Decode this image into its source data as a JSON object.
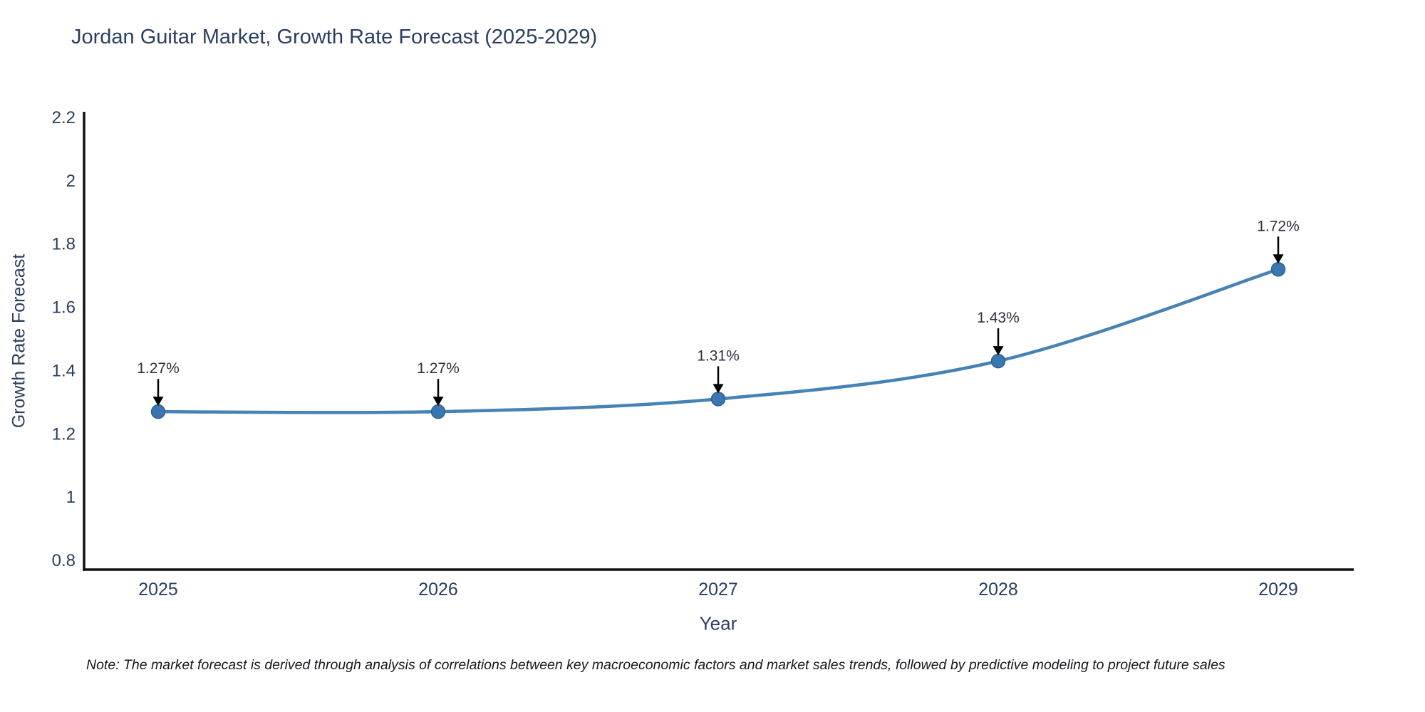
{
  "page": {
    "background": "#ffffff"
  },
  "chart_data": {
    "type": "line",
    "title": "Jordan Guitar Market, Growth Rate Forecast (2025-2029)",
    "xlabel": "Year",
    "ylabel": "Growth Rate Forecast",
    "categories": [
      "2025",
      "2026",
      "2027",
      "2028",
      "2029"
    ],
    "series": [
      {
        "name": "Growth Rate Forecast",
        "values": [
          1.27,
          1.27,
          1.31,
          1.43,
          1.72
        ]
      }
    ],
    "point_labels": [
      "1.27%",
      "1.27%",
      "1.31%",
      "1.43%",
      "1.72%"
    ],
    "annotation_style": "black down-arrow from label to point",
    "y_tick_labels": [
      "0.8",
      "1",
      "1.2",
      "1.4",
      "1.6",
      "1.8",
      "2",
      "2.2"
    ],
    "y_tick_values": [
      0.8,
      1.0,
      1.2,
      1.4,
      1.6,
      1.8,
      2.0,
      2.2
    ],
    "ylim": [
      0.8,
      2.2
    ],
    "grid": false,
    "legend_position": "none",
    "line_shape": "spline",
    "colors": {
      "line": "#4682b4",
      "marker": "#3a76b0",
      "marker_edge": "#2e5f94",
      "axis": "#111111",
      "tick_text": "#2a3f5f",
      "annotation_text": "#2d313a",
      "arrow": "#000000"
    },
    "note": "Note: The market forecast is derived through analysis of correlations between key macroeconomic factors and market sales trends, followed by predictive modeling to project future sales"
  }
}
